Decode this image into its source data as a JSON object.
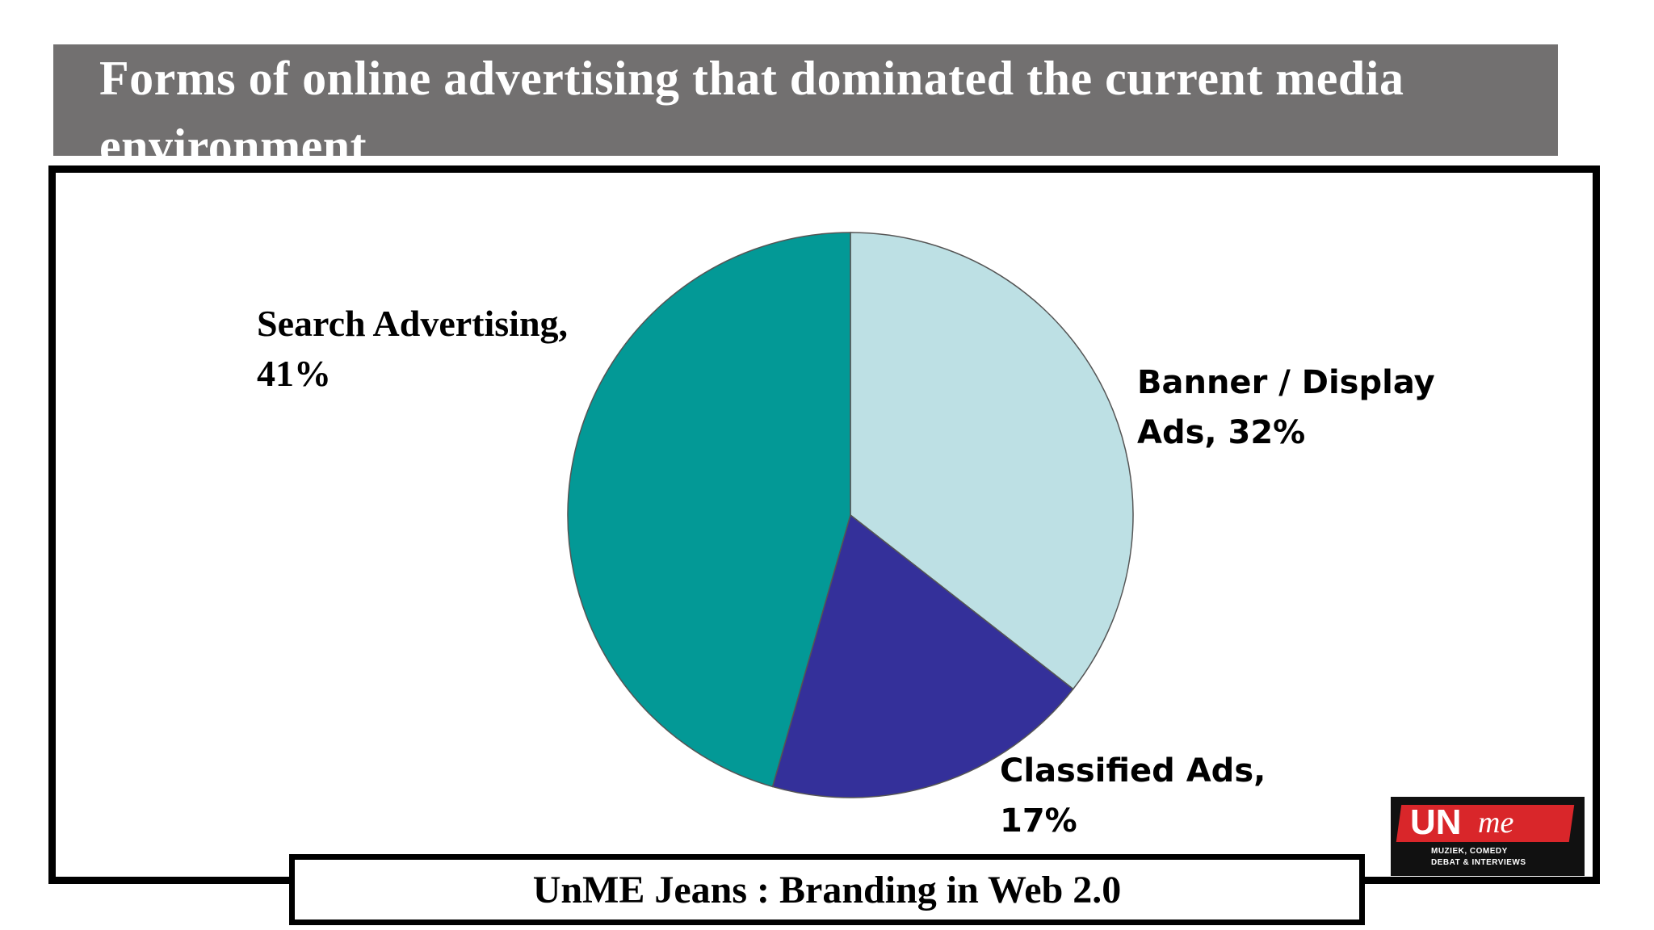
{
  "slide": {
    "title": "Forms of online advertising that dominated the current media environment",
    "footer": "UnME Jeans : Branding in Web 2.0"
  },
  "logo": {
    "main": "UN",
    "script": "me",
    "tagline_1": "MUZIEK, COMEDY",
    "tagline_2": "DEBAT & INTERVIEWS",
    "colors": {
      "ribbon": "#d9262a",
      "background": "#111111"
    }
  },
  "chart_data": {
    "type": "pie",
    "title": "",
    "slices": [
      {
        "name": "Banner / Display Ads",
        "value": 32,
        "display": "Ads, 32%",
        "color": "#bde0e4"
      },
      {
        "name": "Classified Ads",
        "value": 17,
        "display": "17%",
        "color": "#34309a"
      },
      {
        "name": "Search Advertising",
        "value": 41,
        "display": "41%",
        "color": "#039996"
      }
    ],
    "labels": {
      "search_line1": "Search Advertising,",
      "search_line2": "41%",
      "banner_line1": "Banner / Display",
      "banner_line2": "Ads, 32%",
      "classified_line1": "Classified Ads,",
      "classified_line2": "17%"
    },
    "legend": "none",
    "start_angle_deg": 0,
    "direction": "clockwise"
  }
}
